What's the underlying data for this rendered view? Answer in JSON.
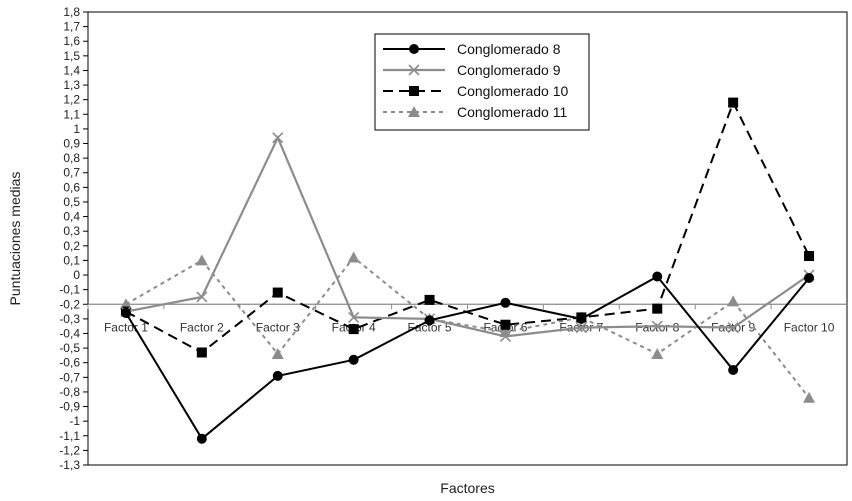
{
  "chart_data": {
    "type": "line",
    "xlabel": "Factores",
    "ylabel": "Puntuaciones medias",
    "ylim": [
      -1.3,
      1.8
    ],
    "ytick_step": 0.1,
    "categories": [
      "Factor 1",
      "Factor 2",
      "Factor 3",
      "Factor 4",
      "Factor 5",
      "Factor 6",
      "Factor 7",
      "Factor 8",
      "Factor 9",
      "Factor 10"
    ],
    "category_axis_at": -0.2,
    "legend_position": "top-center",
    "grid": false,
    "series": [
      {
        "name": "Conglomerado 8",
        "values": [
          -0.26,
          -1.12,
          -0.69,
          -0.58,
          -0.31,
          -0.19,
          -0.3,
          -0.01,
          -0.65,
          -0.02
        ],
        "color": "#000000",
        "dash": "solid",
        "marker": "circle"
      },
      {
        "name": "Conglomerado 9",
        "values": [
          -0.25,
          -0.15,
          0.94,
          -0.29,
          -0.3,
          -0.42,
          -0.36,
          -0.35,
          -0.36,
          0.0
        ],
        "color": "#8c8c8c",
        "dash": "solid",
        "marker": "x"
      },
      {
        "name": "Conglomerado 10",
        "values": [
          -0.25,
          -0.53,
          -0.12,
          -0.37,
          -0.17,
          -0.34,
          -0.29,
          -0.23,
          1.18,
          0.13
        ],
        "color": "#000000",
        "dash": "dashed",
        "marker": "square"
      },
      {
        "name": "Conglomerado 11",
        "values": [
          -0.2,
          0.1,
          -0.54,
          0.12,
          -0.3,
          -0.39,
          -0.29,
          -0.54,
          -0.18,
          -0.84
        ],
        "color": "#8c8c8c",
        "dash": "dotted",
        "marker": "triangle"
      }
    ]
  }
}
